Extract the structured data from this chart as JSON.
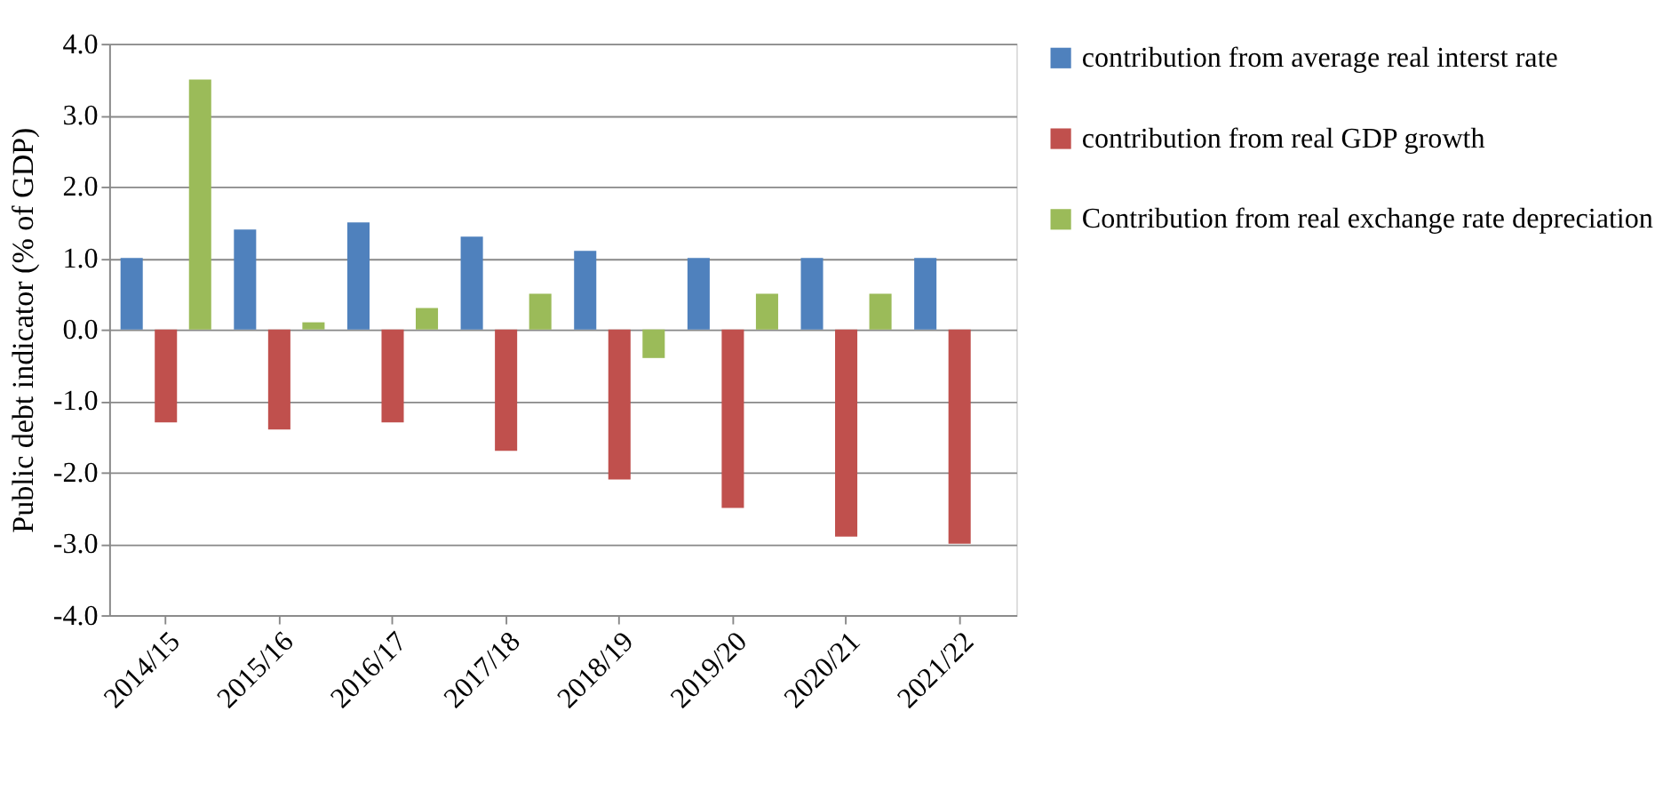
{
  "chart_data": {
    "type": "bar",
    "ylabel": "Public debt indicator (% of GDP)",
    "categories": [
      "2014/15",
      "2015/16",
      "2016/17",
      "2017/18",
      "2018/19",
      "2019/20",
      "2020/21",
      "2021/22"
    ],
    "series": [
      {
        "name": "contribution from average real interst rate",
        "color": "#4f81bd",
        "values": [
          1.0,
          1.4,
          1.5,
          1.3,
          1.1,
          1.0,
          1.0,
          1.0
        ]
      },
      {
        "name": "contribution from real GDP growth",
        "color": "#c0504d",
        "values": [
          -1.3,
          -1.4,
          -1.3,
          -1.7,
          -2.1,
          -2.5,
          -2.9,
          -3.0
        ]
      },
      {
        "name": "Contribution from real exchange rate depreciation",
        "color": "#9bbb59",
        "values": [
          3.5,
          0.1,
          0.3,
          0.5,
          -0.4,
          0.5,
          0.5,
          null
        ]
      }
    ],
    "ylim": [
      -4.0,
      4.0
    ],
    "yticks": [
      {
        "value": -4,
        "label": "-4.0"
      },
      {
        "value": -3,
        "label": "-3.0"
      },
      {
        "value": -2,
        "label": "-2.0"
      },
      {
        "value": -1,
        "label": "-1.0"
      },
      {
        "value": 0,
        "label": "0.0"
      },
      {
        "value": 1,
        "label": "1.0"
      },
      {
        "value": 2,
        "label": "2.0"
      },
      {
        "value": 3,
        "label": "3.0"
      },
      {
        "value": 4,
        "label": "4.0"
      }
    ],
    "grid": "y",
    "legend": "right"
  }
}
